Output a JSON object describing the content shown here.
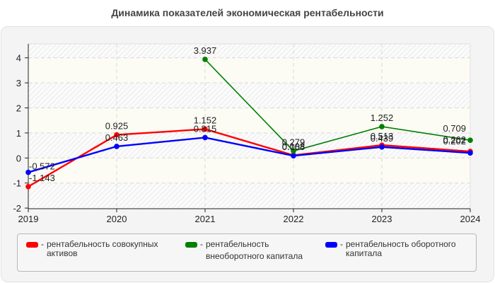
{
  "title": "Динамика показателей экономическая рентабельности",
  "legend": [
    {
      "label_line1": "рентабельность совокупных",
      "label_line2": "активов",
      "color": "#ff0000"
    },
    {
      "label_line1": "рентабельность",
      "label_line2": "внеоборотного капитала",
      "color": "#008000"
    },
    {
      "label_line1": "рентабельность оборотного",
      "label_line2": "капитала",
      "color": "#0000ff"
    }
  ],
  "chart_data": {
    "type": "line",
    "title": "Динамика показателей экономическая рентабельности",
    "xlabel": "",
    "ylabel": "",
    "x": [
      "2019",
      "2020",
      "2021",
      "2022",
      "2023",
      "2024"
    ],
    "ylim": [
      -2,
      4.5
    ],
    "yticks": [
      -2,
      -1,
      0,
      1,
      2,
      3,
      4
    ],
    "grid": true,
    "legend_position": "bottom",
    "series": [
      {
        "name": "рентабельность совокупных активов",
        "color": "#ff0000",
        "values": [
          -1.143,
          0.925,
          1.152,
          0.108,
          0.513,
          0.262
        ]
      },
      {
        "name": "рентабельность внеоборотного капитала",
        "color": "#008000",
        "values": [
          null,
          null,
          3.937,
          0.279,
          1.252,
          0.709
        ]
      },
      {
        "name": "рентабельность оборотного капитала",
        "color": "#0000ff",
        "values": [
          -0.572,
          0.463,
          0.815,
          0.088,
          0.439,
          0.202
        ]
      }
    ]
  }
}
